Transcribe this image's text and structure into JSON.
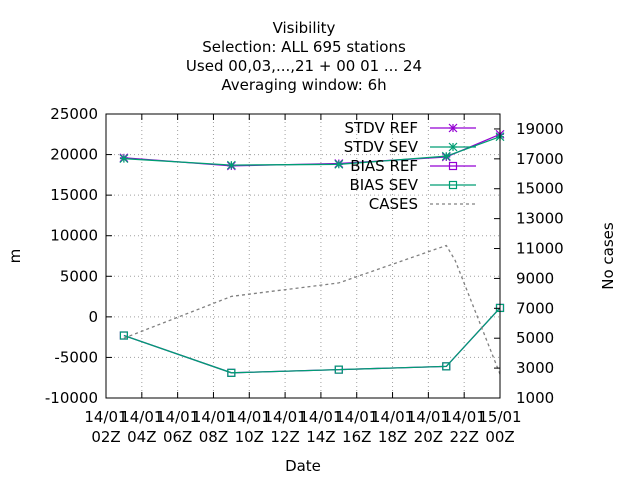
{
  "chart_data": {
    "type": "line",
    "title_lines": [
      "Visibility",
      "Selection: ALL    695 stations",
      "Used  00,03,...,21  + 00 01 ... 24",
      "Averaging window:  6h"
    ],
    "xlabel": "Date",
    "ylabel": "m",
    "y2label": "No cases",
    "x_ticks": [
      {
        "hour": 2,
        "line1": "14/01",
        "line2": "02Z"
      },
      {
        "hour": 4,
        "line1": "14/01",
        "line2": "04Z"
      },
      {
        "hour": 6,
        "line1": "14/01",
        "line2": "06Z"
      },
      {
        "hour": 8,
        "line1": "14/01",
        "line2": "08Z"
      },
      {
        "hour": 10,
        "line1": "14/01",
        "line2": "10Z"
      },
      {
        "hour": 12,
        "line1": "14/01",
        "line2": "12Z"
      },
      {
        "hour": 14,
        "line1": "14/01",
        "line2": "14Z"
      },
      {
        "hour": 16,
        "line1": "14/01",
        "line2": "16Z"
      },
      {
        "hour": 18,
        "line1": "14/01",
        "line2": "18Z"
      },
      {
        "hour": 20,
        "line1": "14/01",
        "line2": "20Z"
      },
      {
        "hour": 22,
        "line1": "14/01",
        "line2": "22Z"
      },
      {
        "hour": 24,
        "line1": "15/01",
        "line2": "00Z"
      }
    ],
    "xlim": [
      2,
      24
    ],
    "ylim": [
      -10000,
      25000
    ],
    "y_ticks": [
      -10000,
      -5000,
      0,
      5000,
      10000,
      15000,
      20000,
      25000
    ],
    "y2lim": [
      1000,
      20000
    ],
    "y2_ticks": [
      1000,
      3000,
      5000,
      7000,
      9000,
      11000,
      13000,
      15000,
      17000,
      19000
    ],
    "grid": true,
    "legend_position": "top-right",
    "series": [
      {
        "name": "STDV REF",
        "axis": "y",
        "color": "#9400d3",
        "marker": "star",
        "dashed": false,
        "x": [
          3,
          9,
          15,
          21,
          24
        ],
        "values": [
          19600,
          18600,
          18900,
          19700,
          22500
        ]
      },
      {
        "name": "STDV SEV",
        "axis": "y",
        "color": "#009e73",
        "marker": "star",
        "dashed": false,
        "x": [
          3,
          9,
          15,
          21,
          24
        ],
        "values": [
          19500,
          18700,
          18800,
          19800,
          22200
        ]
      },
      {
        "name": "BIAS REF",
        "axis": "y",
        "color": "#9400d3",
        "marker": "square",
        "dashed": false,
        "x": [
          3,
          9,
          15,
          21,
          24
        ],
        "values": [
          -2300,
          -6900,
          -6500,
          -6100,
          1100
        ]
      },
      {
        "name": "BIAS SEV",
        "axis": "y",
        "color": "#009e73",
        "marker": "square",
        "dashed": false,
        "x": [
          3,
          9,
          15,
          21,
          24
        ],
        "values": [
          -2300,
          -6900,
          -6500,
          -6100,
          1100
        ]
      },
      {
        "name": "CASES",
        "axis": "y2",
        "color": "#808080",
        "marker": "none",
        "dashed": true,
        "x": [
          3,
          9,
          15,
          21,
          21.5,
          24
        ],
        "values": [
          5000,
          7800,
          8700,
          11200,
          10200,
          2600
        ]
      }
    ]
  }
}
